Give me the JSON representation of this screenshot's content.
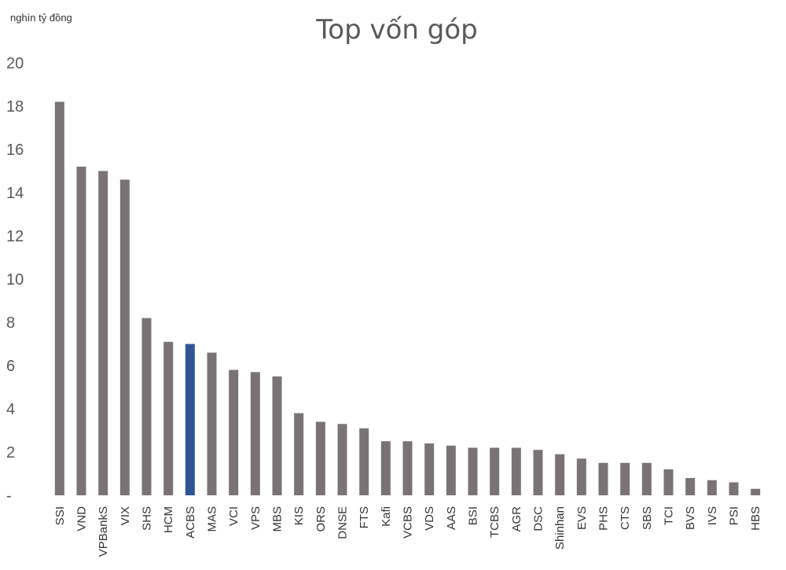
{
  "chart_data": {
    "type": "bar",
    "title": "Top vốn góp",
    "unit_label": "nghìn tỷ đồng",
    "xlabel": "",
    "ylabel": "",
    "ylim": [
      0,
      20
    ],
    "yticks": [
      {
        "value": 0,
        "label": "-"
      },
      {
        "value": 2,
        "label": "2"
      },
      {
        "value": 4,
        "label": "4"
      },
      {
        "value": 6,
        "label": "6"
      },
      {
        "value": 8,
        "label": "8"
      },
      {
        "value": 10,
        "label": "10"
      },
      {
        "value": 12,
        "label": "12"
      },
      {
        "value": 14,
        "label": "14"
      },
      {
        "value": 16,
        "label": "16"
      },
      {
        "value": 18,
        "label": "18"
      },
      {
        "value": 20,
        "label": "20"
      }
    ],
    "categories": [
      "SSI",
      "VND",
      "VPBankS",
      "VIX",
      "SHS",
      "HCM",
      "ACBS",
      "MAS",
      "VCI",
      "VPS",
      "MBS",
      "KIS",
      "ORS",
      "DNSE",
      "FTS",
      "Kafi",
      "VCBS",
      "VDS",
      "AAS",
      "BSI",
      "TCBS",
      "AGR",
      "DSC",
      "Shinhan",
      "EVS",
      "PHS",
      "CTS",
      "SBS",
      "TCI",
      "BVS",
      "IVS",
      "PSI",
      "HBS"
    ],
    "values": [
      18.2,
      15.2,
      15.0,
      14.6,
      8.2,
      7.1,
      7.0,
      6.6,
      5.8,
      5.7,
      5.5,
      3.8,
      3.4,
      3.3,
      3.1,
      2.5,
      2.5,
      2.4,
      2.3,
      2.2,
      2.2,
      2.2,
      2.1,
      1.9,
      1.7,
      1.5,
      1.5,
      1.5,
      1.2,
      0.8,
      0.7,
      0.6,
      0.3
    ],
    "highlight_category": "ACBS",
    "colors": {
      "bar": "#7a7374",
      "highlight": "#2f5597",
      "axis_text": "#595959"
    },
    "grid": false,
    "legend": "none"
  }
}
